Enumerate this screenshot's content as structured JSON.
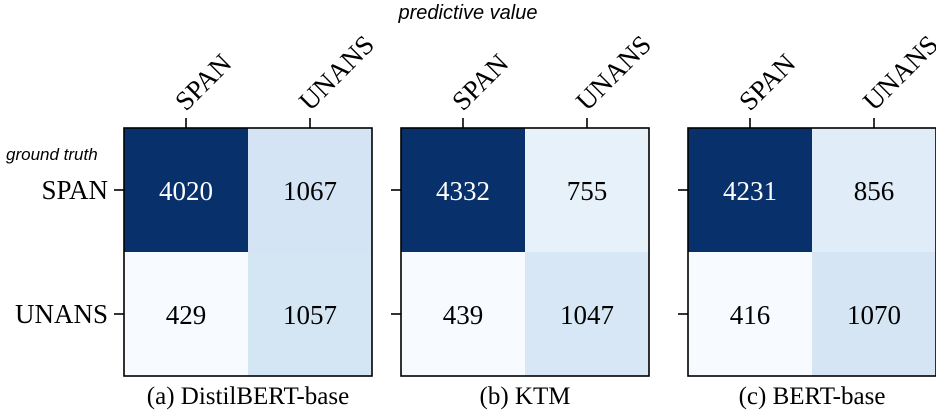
{
  "figure": {
    "top_label": "predictive value",
    "side_label": "ground truth"
  },
  "chart_data": [
    {
      "type": "heatmap",
      "caption": "(a) DistilBERT-base",
      "x_categories": [
        "SPAN",
        "UNANS"
      ],
      "y_categories": [
        "SPAN",
        "UNANS"
      ],
      "values": [
        [
          4020,
          1067
        ],
        [
          429,
          1057
        ]
      ]
    },
    {
      "type": "heatmap",
      "caption": "(b) KTM",
      "x_categories": [
        "SPAN",
        "UNANS"
      ],
      "y_categories": [
        "SPAN",
        "UNANS"
      ],
      "values": [
        [
          4332,
          755
        ],
        [
          439,
          1047
        ]
      ]
    },
    {
      "type": "heatmap",
      "caption": "(c) BERT-base",
      "x_categories": [
        "SPAN",
        "UNANS"
      ],
      "y_categories": [
        "SPAN",
        "UNANS"
      ],
      "values": [
        [
          4231,
          856
        ],
        [
          416,
          1070
        ]
      ]
    }
  ],
  "colors": {
    "colormap": "Blues",
    "frame": "#000000",
    "light_text": "#ffffff",
    "dark_text": "#000000"
  }
}
